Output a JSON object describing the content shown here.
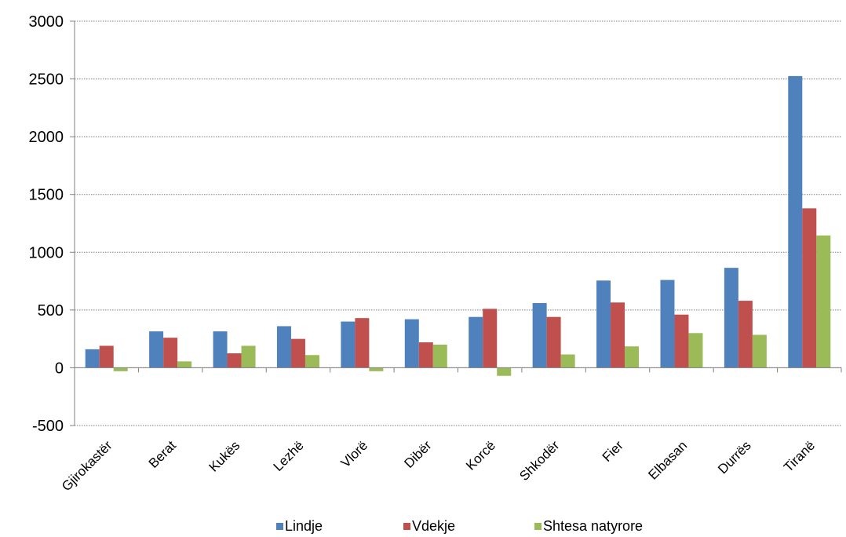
{
  "chart_data": {
    "type": "bar",
    "title": "",
    "xlabel": "",
    "ylabel": "",
    "ylim": [
      -500,
      3000
    ],
    "yticks": [
      -500,
      0,
      500,
      1000,
      1500,
      2000,
      2500,
      3000
    ],
    "grid": true,
    "legend": "bottom",
    "categories": [
      "Gjirokastër",
      "Berat",
      "Kukës",
      "Lezhë",
      "Vlorë",
      "Dibër",
      "Korcë",
      "Shkodër",
      "Fier",
      "Elbasan",
      "Durrës",
      "Tiranë"
    ],
    "series": [
      {
        "name": "Lindje",
        "color": "#4F81BD",
        "values": [
          160,
          315,
          315,
          360,
          400,
          420,
          440,
          560,
          755,
          760,
          865,
          2525
        ]
      },
      {
        "name": "Vdekje",
        "color": "#C0504D",
        "values": [
          190,
          260,
          125,
          250,
          430,
          220,
          510,
          440,
          565,
          460,
          580,
          1380
        ]
      },
      {
        "name": "Shtesa natyrore",
        "color": "#9BBB59",
        "values": [
          -30,
          55,
          190,
          110,
          -30,
          200,
          -70,
          115,
          185,
          300,
          285,
          1145
        ]
      }
    ]
  }
}
